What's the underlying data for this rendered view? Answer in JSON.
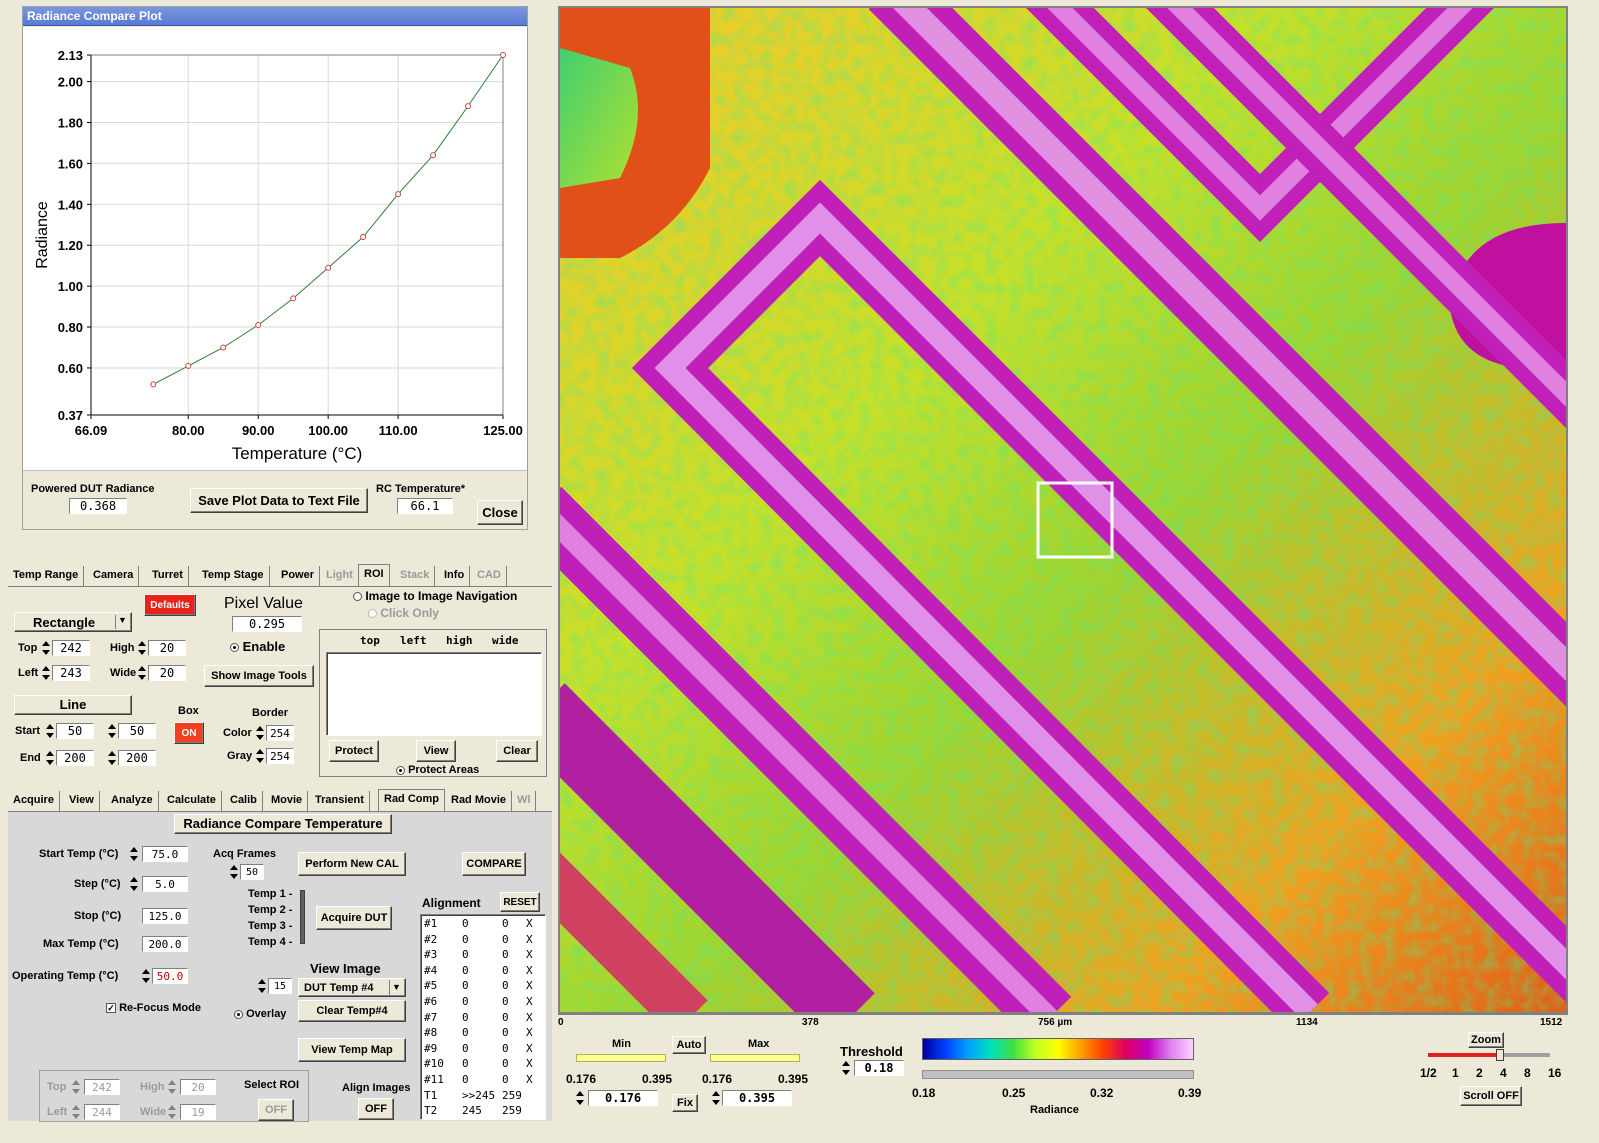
{
  "plot_window": {
    "title": "Radiance Compare Plot",
    "powered_label": "Powered DUT Radiance",
    "powered_value": "0.368",
    "save_button": "Save Plot Data to Text File",
    "rc_label": "RC Temperature*",
    "rc_value": "66.1",
    "close_button": "Close"
  },
  "chart_data": {
    "type": "line",
    "title": "",
    "xlabel": "Temperature (°C)",
    "ylabel": "Radiance",
    "xlim": [
      66.09,
      125.0
    ],
    "ylim": [
      0.37,
      2.13
    ],
    "x_ticks": [
      "66.09",
      "80.00",
      "90.00",
      "100.00",
      "110.00",
      "125.00"
    ],
    "y_ticks": [
      "0.37",
      "0.60",
      "0.80",
      "1.00",
      "1.20",
      "1.40",
      "1.60",
      "1.80",
      "2.00",
      "2.13"
    ],
    "grid": true,
    "series": [
      {
        "points": [
          [
            75,
            0.52
          ],
          [
            80,
            0.61
          ],
          [
            85,
            0.7
          ],
          [
            90,
            0.81
          ],
          [
            95,
            0.94
          ],
          [
            100,
            1.09
          ],
          [
            105,
            1.24
          ],
          [
            110,
            1.45
          ],
          [
            115,
            1.64
          ],
          [
            120,
            1.88
          ],
          [
            125,
            2.13
          ]
        ]
      }
    ],
    "marker_color": "#d04040",
    "line_color": "#2e7d32"
  },
  "tabs_top": [
    {
      "label": "Temp Range",
      "dim": false
    },
    {
      "label": "Camera",
      "dim": false
    },
    {
      "label": "Turret",
      "dim": false
    },
    {
      "label": "Temp Stage",
      "dim": false
    },
    {
      "label": "Power",
      "dim": false
    },
    {
      "label": "Light",
      "dim": true
    },
    {
      "label": "ROI",
      "dim": false,
      "active": true
    },
    {
      "label": "Stack",
      "dim": true
    },
    {
      "label": "Info",
      "dim": false
    },
    {
      "label": "CAD",
      "dim": true
    }
  ],
  "roi": {
    "shape_select": "Rectangle",
    "defaults_button": "Defaults",
    "pixel_value_label": "Pixel Value",
    "pixel_value": "0.295",
    "top_label": "Top",
    "top_value": "242",
    "high_label": "High",
    "high_value": "20",
    "left_label": "Left",
    "left_value": "243",
    "wide_label": "Wide",
    "wide_value": "20",
    "enable_label": "Enable",
    "show_tools_button": "Show Image Tools",
    "nav_label": "Image to Image Navigation",
    "click_only_label": "Click Only",
    "list_headers": [
      "top",
      "left",
      "high",
      "wide"
    ],
    "line_label": "Line",
    "start_label": "Start",
    "start_a": "50",
    "start_b": "50",
    "end_label": "End",
    "end_a": "200",
    "end_b": "200",
    "box_label": "Box",
    "box_button": "ON",
    "border_label": "Border",
    "color_label": "Color",
    "color_value": "254",
    "gray_label": "Gray",
    "gray_value": "254",
    "protect_button": "Protect",
    "view_button": "View",
    "clear_button": "Clear",
    "protect_areas_label": "Protect Areas"
  },
  "tabs_bottom": [
    {
      "label": "Acquire",
      "dim": false
    },
    {
      "label": "View",
      "dim": false
    },
    {
      "label": "Analyze",
      "dim": false
    },
    {
      "label": "Calculate",
      "dim": false
    },
    {
      "label": "Calib",
      "dim": false
    },
    {
      "label": "Movie",
      "dim": false
    },
    {
      "label": "Transient",
      "dim": false
    },
    {
      "label": "Rad Comp",
      "dim": false,
      "active": true
    },
    {
      "label": "Rad Movie",
      "dim": false
    },
    {
      "label": "Wl",
      "dim": true
    }
  ],
  "radcomp": {
    "title": "Radiance Compare Temperature",
    "start_label": "Start Temp (°C)",
    "start_value": "75.0",
    "step_label": "Step (°C)",
    "step_value": "5.0",
    "stop_label": "Stop (°C)",
    "stop_value": "125.0",
    "max_label": "Max Temp (°C)",
    "max_value": "200.0",
    "operating_label": "Operating Temp (°C)",
    "operating_value": "50.0",
    "acq_frames_label": "Acq Frames",
    "acq_frames_value": "50",
    "perform_button": "Perform New CAL",
    "compare_button": "COMPARE",
    "temp_labels": [
      "Temp 1 -",
      "Temp 2 -",
      "Temp 3 -",
      "Temp 4 -"
    ],
    "acquire_dut_button": "Acquire DUT",
    "refocus_label": "Re-Focus Mode",
    "view_image_label": "View Image",
    "view_image_num": "15",
    "view_image_select": "DUT Temp #4",
    "overlay_label": "Overlay",
    "clear_temp_button": "Clear Temp#4",
    "view_temp_map_button": "View Temp Map",
    "alignment_label": "Alignment",
    "reset_button": "RESET",
    "alignment_rows": [
      [
        "#1",
        "0",
        "0",
        "X"
      ],
      [
        "#2",
        "0",
        "0",
        "X"
      ],
      [
        "#3",
        "0",
        "0",
        "X"
      ],
      [
        "#4",
        "0",
        "0",
        "X"
      ],
      [
        "#5",
        "0",
        "0",
        "X"
      ],
      [
        "#6",
        "0",
        "0",
        "X"
      ],
      [
        "#7",
        "0",
        "0",
        "X"
      ],
      [
        "#8",
        "0",
        "0",
        "X"
      ],
      [
        "#9",
        "0",
        "0",
        "X"
      ],
      [
        "#10",
        "0",
        "0",
        "X"
      ],
      [
        "#11",
        "0",
        "0",
        "X"
      ],
      [
        "T1",
        ">>245",
        "259",
        ""
      ],
      [
        "T2",
        "245",
        "259",
        ""
      ]
    ],
    "sub_top_label": "Top",
    "sub_top_value": "242",
    "sub_high_label": "High",
    "sub_high_value": "20",
    "sub_left_label": "Left",
    "sub_left_value": "244",
    "sub_wide_label": "Wide",
    "sub_wide_value": "19",
    "select_roi_label": "Select ROI",
    "select_roi_button": "OFF",
    "align_images_label": "Align Images",
    "align_images_button": "OFF"
  },
  "image_axis": {
    "ticks": [
      "0",
      "378",
      "756 µm",
      "1134",
      "1512"
    ]
  },
  "scale_controls": {
    "min_label": "Min",
    "auto_button": "Auto",
    "max_label": "Max",
    "min_range_lo": "0.176",
    "min_range_hi": "0.395",
    "max_range_lo": "0.176",
    "max_range_hi": "0.395",
    "min_value": "0.176",
    "fix_button": "Fix",
    "max_value": "0.395",
    "threshold_label": "Threshold",
    "threshold_value": "0.18",
    "colorbar_ticks": [
      "0.18",
      "0.25",
      "0.32",
      "0.39"
    ],
    "colorbar_label": "Radiance",
    "zoom_label": "Zoom",
    "zoom_ticks": [
      "1/2",
      "1",
      "2",
      "4",
      "8",
      "16"
    ],
    "scroll_button": "Scroll OFF"
  }
}
